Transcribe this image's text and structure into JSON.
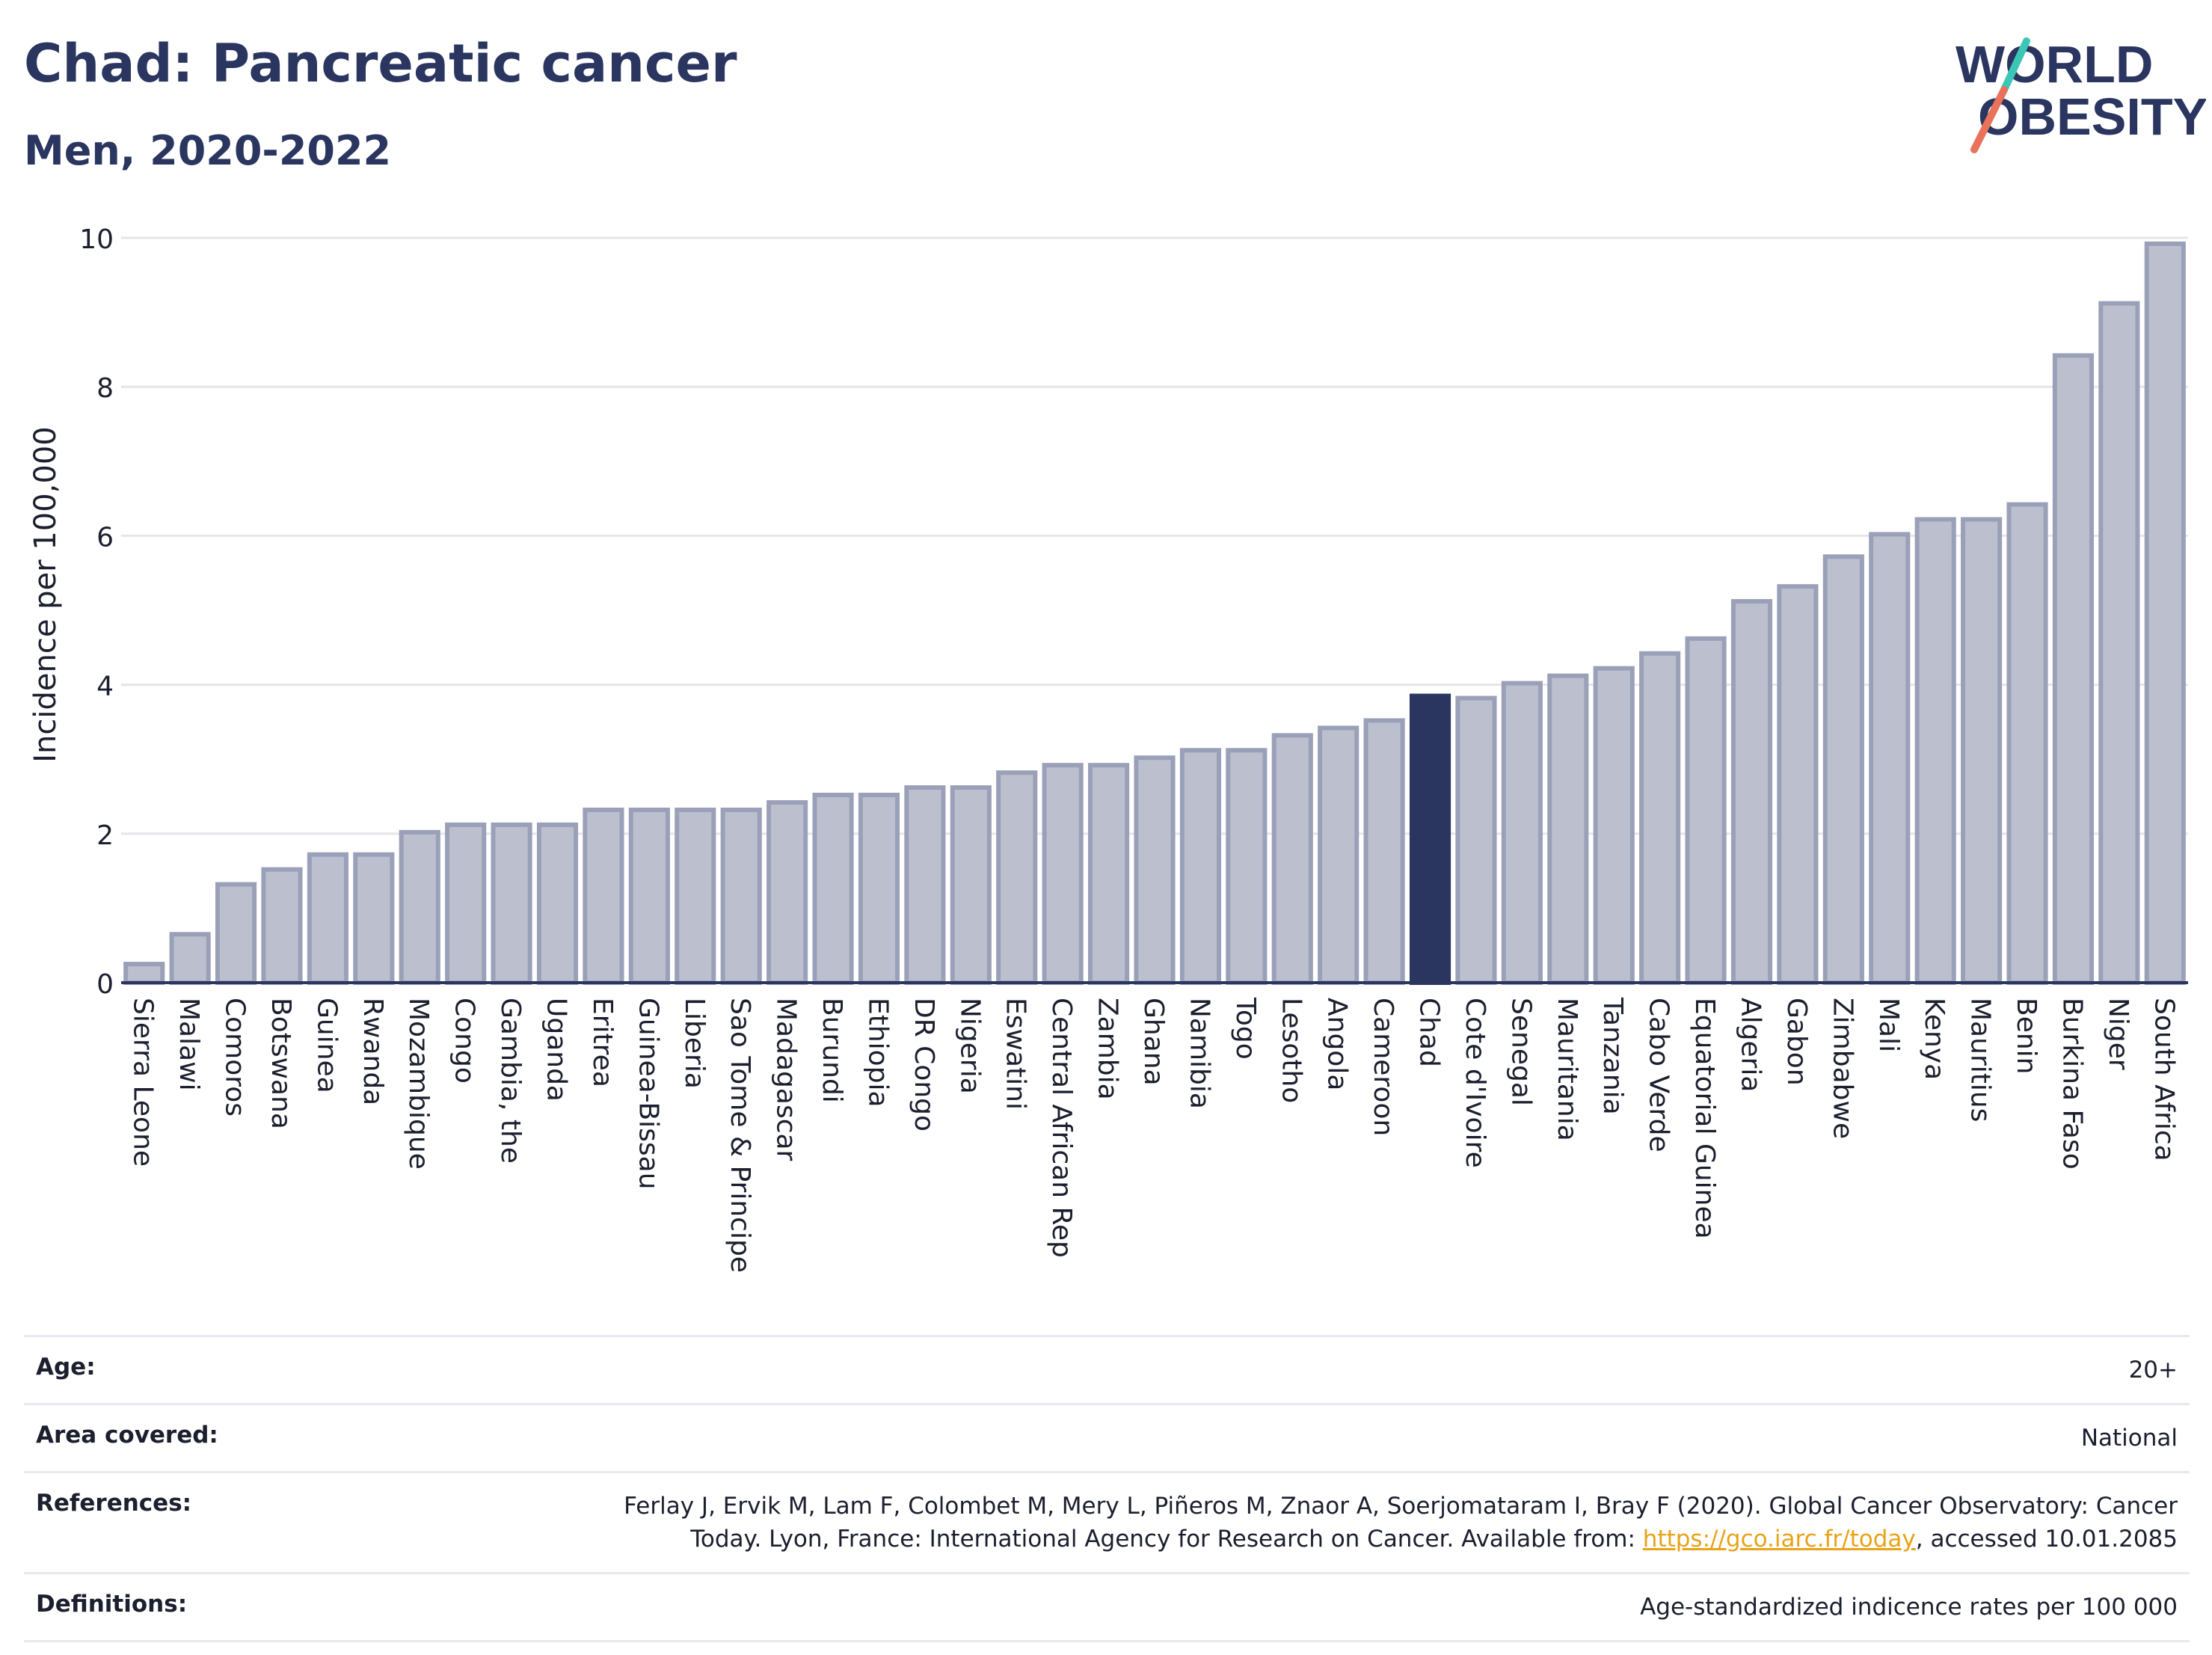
{
  "header": {
    "title": "Chad: Pancreatic cancer",
    "subtitle": "Men, 2020-2022"
  },
  "logo": {
    "line1": "WORLD",
    "line2": "OBESITY",
    "slash_colors": [
      "#3cc6b5",
      "#e8735a"
    ]
  },
  "chart_data": {
    "type": "bar",
    "ylabel": "Incidence per 100,000",
    "ylim": [
      0,
      10
    ],
    "yticks": [
      0,
      2,
      4,
      6,
      8,
      10
    ],
    "highlight": "Chad",
    "colors": {
      "bar": "#bcc0ce",
      "bar_border": "#9aa0b8",
      "highlight": "#2a3560",
      "grid": "#e6e6ea",
      "axis": "#2a3560"
    },
    "categories": [
      "Sierra Leone",
      "Malawi",
      "Comoros",
      "Botswana",
      "Guinea",
      "Rwanda",
      "Mozambique",
      "Congo",
      "Gambia, the",
      "Uganda",
      "Eritrea",
      "Guinea-Bissau",
      "Liberia",
      "Sao Tome & Principe",
      "Madagascar",
      "Burundi",
      "Ethiopia",
      "DR Congo",
      "Nigeria",
      "Eswatini",
      "Central African Rep",
      "Zambia",
      "Ghana",
      "Namibia",
      "Togo",
      "Lesotho",
      "Angola",
      "Cameroon",
      "Chad",
      "Cote d'Ivoire",
      "Senegal",
      "Mauritania",
      "Tanzania",
      "Cabo Verde",
      "Equatorial Guinea",
      "Algeria",
      "Gabon",
      "Zimbabwe",
      "Mali",
      "Kenya",
      "Mauritius",
      "Benin",
      "Burkina Faso",
      "Niger",
      "South Africa"
    ],
    "values": [
      0.25,
      0.65,
      1.32,
      1.52,
      1.72,
      1.72,
      2.02,
      2.12,
      2.12,
      2.12,
      2.32,
      2.32,
      2.32,
      2.32,
      2.42,
      2.52,
      2.52,
      2.62,
      2.62,
      2.82,
      2.92,
      2.92,
      3.02,
      3.12,
      3.12,
      3.32,
      3.42,
      3.52,
      3.85,
      3.82,
      4.02,
      4.12,
      4.22,
      4.42,
      4.62,
      5.12,
      5.32,
      5.72,
      6.02,
      6.22,
      6.22,
      6.42,
      8.42,
      9.12,
      9.92
    ]
  },
  "meta": {
    "age_label": "Age:",
    "age_value": "20+",
    "area_label": "Area covered:",
    "area_value": "National",
    "references_label": "References:",
    "references_pre": "Ferlay J, Ervik M, Lam F, Colombet M, Mery L, Piñeros M, Znaor A, Soerjomataram I, Bray F (2020). Global Cancer Observatory: Cancer Today. Lyon, France: International Agency for Research on Cancer. Available from: ",
    "references_link": "https://gco.iarc.fr/today",
    "references_post": ", accessed 10.01.2085",
    "definitions_label": "Definitions:",
    "definitions_value": "Age-standardized indicence rates per 100 000"
  }
}
